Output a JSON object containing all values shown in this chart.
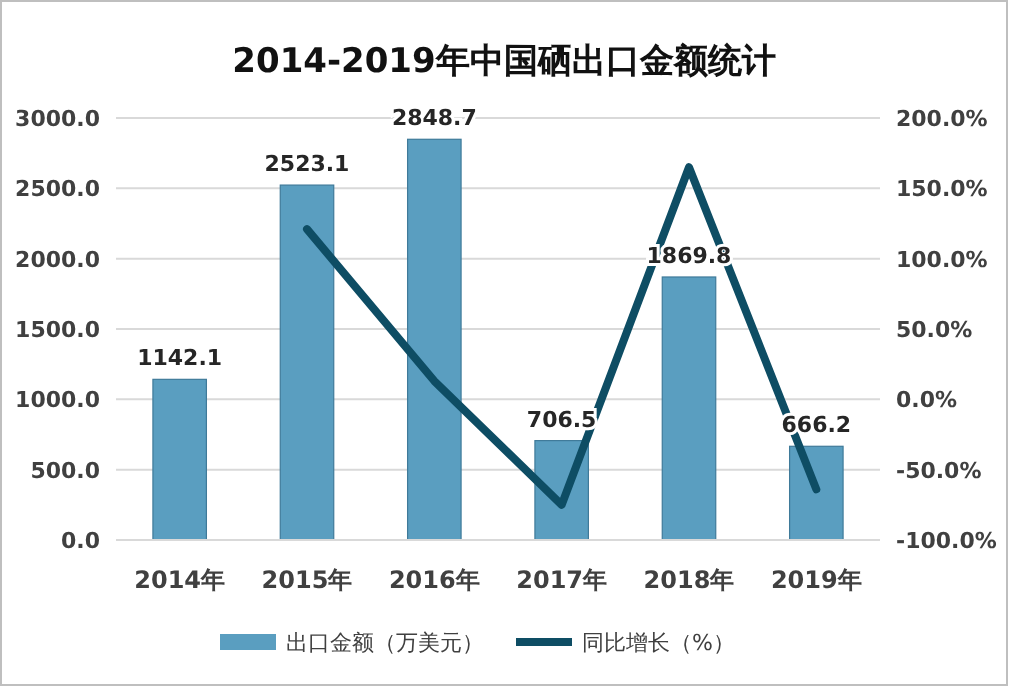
{
  "chart_data": {
    "type": "bar",
    "title": "2014-2019年中国硒出口金额统计",
    "categories": [
      "2014年",
      "2015年",
      "2016年",
      "2017年",
      "2018年",
      "2019年"
    ],
    "series": [
      {
        "name": "出口金额（万美元）",
        "color": "#5a9ec0",
        "values": [
          1142.1,
          2523.1,
          2848.7,
          706.5,
          1869.8,
          666.2
        ],
        "value_labels": [
          "1142.1",
          "2523.1",
          "2848.7",
          "706.5",
          "1869.8",
          "666.2"
        ]
      },
      {
        "name": "同比增长（%）",
        "type": "line",
        "axis": "y2",
        "color": "#0e4d64",
        "values": [
          null,
          121,
          13,
          -75,
          165,
          -64
        ]
      }
    ],
    "ylim": [
      0,
      3000
    ],
    "yticks": [
      {
        "value": 0,
        "label": "0.0"
      },
      {
        "value": 500,
        "label": "500.0"
      },
      {
        "value": 1000,
        "label": "1000.0"
      },
      {
        "value": 1500,
        "label": "1500.0"
      },
      {
        "value": 2000,
        "label": "2000.0"
      },
      {
        "value": 2500,
        "label": "2500.0"
      },
      {
        "value": 3000,
        "label": "3000.0"
      }
    ],
    "y2lim": [
      -100,
      200
    ],
    "y2ticks": [
      {
        "value": -100,
        "label": "-100.0%"
      },
      {
        "value": -50,
        "label": "-50.0%"
      },
      {
        "value": 0,
        "label": "0.0%"
      },
      {
        "value": 50,
        "label": "50.0%"
      },
      {
        "value": 100,
        "label": "100.0%"
      },
      {
        "value": 150,
        "label": "150.0%"
      },
      {
        "value": 200,
        "label": "200.0%"
      }
    ],
    "grid": "y",
    "legend": "bottom",
    "line_style": "solid",
    "marker": "none"
  }
}
